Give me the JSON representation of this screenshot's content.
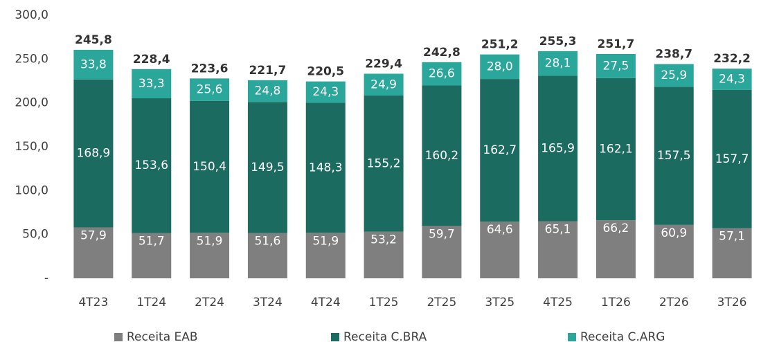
{
  "chart_data": {
    "type": "stacked_bar",
    "categories": [
      "4T23",
      "1T24",
      "2T24",
      "3T24",
      "4T24",
      "1T25",
      "2T25",
      "3T25",
      "4T25",
      "1T26",
      "2T26",
      "3T26"
    ],
    "series": [
      {
        "name": "Receita EAB",
        "color": "#7f7f7f",
        "values": [
          57.9,
          51.7,
          51.9,
          51.6,
          51.9,
          53.2,
          59.7,
          64.6,
          65.1,
          66.2,
          60.9,
          57.1
        ],
        "value_labels": [
          "57,9",
          "51,7",
          "51,9",
          "51,6",
          "51,9",
          "53,2",
          "59,7",
          "64,6",
          "65,1",
          "66,2",
          "60,9",
          "57,1"
        ]
      },
      {
        "name": "Receita C.BRA",
        "color": "#1b6b61",
        "values": [
          168.9,
          153.6,
          150.4,
          149.5,
          148.3,
          155.2,
          160.2,
          162.7,
          165.9,
          162.1,
          157.5,
          157.7
        ],
        "value_labels": [
          "168,9",
          "153,6",
          "150,4",
          "149,5",
          "148,3",
          "155,2",
          "160,2",
          "162,7",
          "165,9",
          "162,1",
          "157,5",
          "157,7"
        ]
      },
      {
        "name": "Receita C.ARG",
        "color": "#2aa69b",
        "values": [
          33.8,
          33.3,
          25.6,
          24.8,
          24.3,
          24.9,
          26.6,
          28.0,
          28.1,
          27.5,
          25.9,
          24.3
        ],
        "value_labels": [
          "33,8",
          "33,3",
          "25,6",
          "24,8",
          "24,3",
          "24,9",
          "26,6",
          "28,0",
          "28,1",
          "27,5",
          "25,9",
          "24,3"
        ]
      }
    ],
    "totals": {
      "values": [
        245.8,
        228.4,
        223.6,
        221.7,
        220.5,
        229.4,
        242.8,
        251.2,
        255.3,
        251.7,
        238.7,
        232.2
      ],
      "value_labels": [
        "245,8",
        "228,4",
        "223,6",
        "221,7",
        "220,5",
        "229,4",
        "242,8",
        "251,2",
        "255,3",
        "251,7",
        "238,7",
        "232,2"
      ]
    },
    "ylim": [
      0,
      300
    ],
    "yticks": [
      {
        "value": 0,
        "label": "-"
      },
      {
        "value": 50,
        "label": "50,0"
      },
      {
        "value": 100,
        "label": "100,0"
      },
      {
        "value": 150,
        "label": "150,0"
      },
      {
        "value": 200,
        "label": "200,0"
      },
      {
        "value": 250,
        "label": "250,0"
      },
      {
        "value": 300,
        "label": "300,0"
      }
    ],
    "legend": "bottom"
  }
}
